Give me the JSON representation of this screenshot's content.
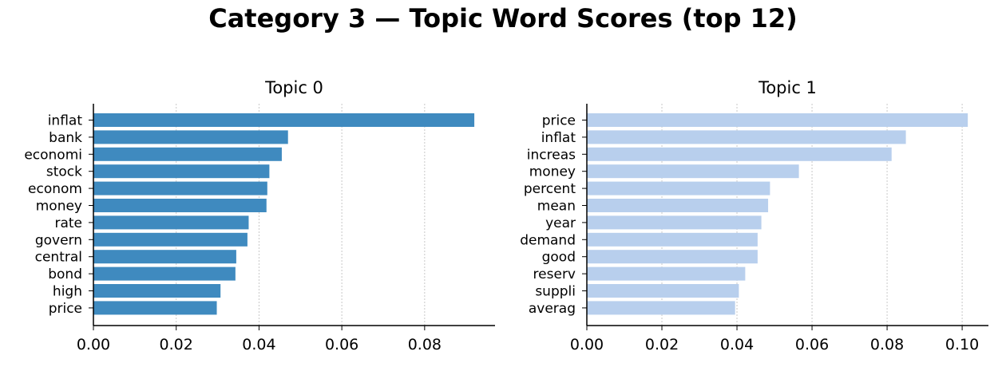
{
  "figure": {
    "title": "Category 3 — Topic Word Scores (top 12)"
  },
  "chart_data": [
    {
      "type": "bar",
      "orientation": "horizontal",
      "title": "Topic 0",
      "categories": [
        "inflat",
        "bank",
        "economi",
        "stock",
        "econom",
        "money",
        "rate",
        "govern",
        "central",
        "bond",
        "high",
        "price"
      ],
      "values": [
        0.092,
        0.047,
        0.0455,
        0.0425,
        0.042,
        0.0418,
        0.0375,
        0.0372,
        0.0345,
        0.0343,
        0.0307,
        0.0298
      ],
      "xlim": [
        0,
        0.097
      ],
      "xticks": [
        "0.00",
        "0.02",
        "0.04",
        "0.06",
        "0.08"
      ],
      "xtick_values": [
        0,
        0.02,
        0.04,
        0.06,
        0.08
      ],
      "color": "#3f8abf",
      "grid": "x-dotted"
    },
    {
      "type": "bar",
      "orientation": "horizontal",
      "title": "Topic 1",
      "categories": [
        "price",
        "inflat",
        "increas",
        "money",
        "percent",
        "mean",
        "year",
        "demand",
        "good",
        "reserv",
        "suppli",
        "averag"
      ],
      "values": [
        0.1015,
        0.085,
        0.0812,
        0.0565,
        0.0488,
        0.0483,
        0.0465,
        0.0455,
        0.0455,
        0.0422,
        0.0405,
        0.0395
      ],
      "xlim": [
        0,
        0.107
      ],
      "xticks": [
        "0.00",
        "0.02",
        "0.04",
        "0.06",
        "0.08",
        "0.10"
      ],
      "xtick_values": [
        0,
        0.02,
        0.04,
        0.06,
        0.08,
        0.1
      ],
      "color": "#b8cfed",
      "grid": "x-dotted"
    }
  ]
}
